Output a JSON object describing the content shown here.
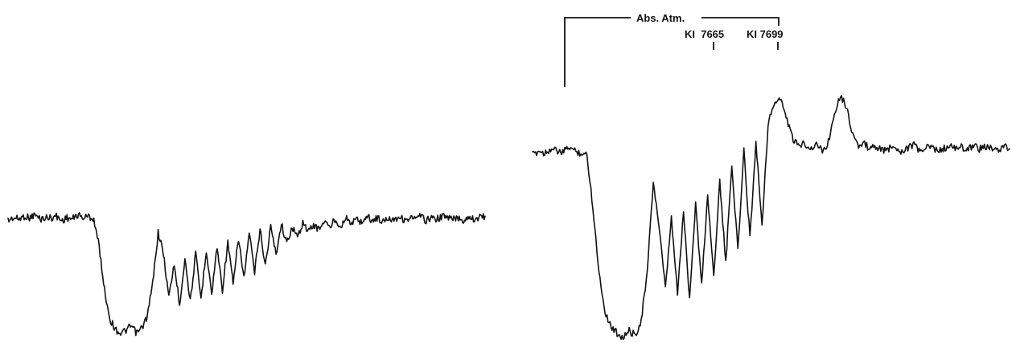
{
  "chart_data": [
    {
      "type": "line",
      "panel": "left",
      "title": "",
      "xlabel": "",
      "ylabel": "",
      "axes_visible": false,
      "grid": false,
      "legend": "none",
      "series": [
        {
          "values": [
            0.78,
            0.8,
            0.79,
            0.81,
            0.8,
            0.82,
            0.79,
            0.8,
            0.8,
            0.81,
            0.78,
            0.8,
            0.79,
            0.82,
            0.8,
            0.81,
            0.79,
            0.6,
            0.3,
            0.1,
            0.03,
            0.0,
            0.02,
            0.05,
            0.0,
            0.04,
            0.12,
            0.35,
            0.7,
            0.55,
            0.25,
            0.48,
            0.2,
            0.52,
            0.22,
            0.55,
            0.24,
            0.58,
            0.27,
            0.6,
            0.3,
            0.63,
            0.34,
            0.66,
            0.38,
            0.69,
            0.42,
            0.72,
            0.47,
            0.74,
            0.55,
            0.76,
            0.62,
            0.74,
            0.66,
            0.77,
            0.7,
            0.75,
            0.72,
            0.78,
            0.73,
            0.79,
            0.74,
            0.8,
            0.76,
            0.79,
            0.77,
            0.81,
            0.78,
            0.8,
            0.77,
            0.8,
            0.79,
            0.81,
            0.78,
            0.8,
            0.79,
            0.81,
            0.78,
            0.8,
            0.79,
            0.81,
            0.8,
            0.79,
            0.8,
            0.78,
            0.81,
            0.79,
            0.8,
            0.81
          ]
        }
      ]
    },
    {
      "type": "line",
      "panel": "right",
      "title": "",
      "xlabel": "",
      "ylabel": "",
      "axes_visible": false,
      "grid": false,
      "legend": "none",
      "annotations": {
        "bracket_label": "Abs. Atm.",
        "line_labels": [
          "KI  7665",
          "KI 7699"
        ]
      },
      "series": [
        {
          "values": [
            0.84,
            0.86,
            0.85,
            0.87,
            0.86,
            0.85,
            0.88,
            0.86,
            0.85,
            0.84,
            0.6,
            0.3,
            0.12,
            0.05,
            0.02,
            0.0,
            0.03,
            0.01,
            0.08,
            0.3,
            0.72,
            0.5,
            0.22,
            0.55,
            0.2,
            0.58,
            0.18,
            0.62,
            0.24,
            0.66,
            0.28,
            0.72,
            0.34,
            0.8,
            0.4,
            0.86,
            0.46,
            0.9,
            0.52,
            0.98,
            1.08,
            1.1,
            1.02,
            0.92,
            0.88,
            0.9,
            0.87,
            0.89,
            0.86,
            0.9,
            1.04,
            1.12,
            1.06,
            0.94,
            0.88,
            0.89,
            0.87,
            0.88,
            0.86,
            0.87,
            0.88,
            0.86,
            0.87,
            0.89,
            0.86,
            0.87,
            0.88,
            0.86,
            0.87,
            0.88,
            0.87,
            0.88,
            0.86,
            0.89,
            0.87,
            0.88,
            0.87,
            0.86,
            0.88,
            0.87
          ]
        }
      ]
    }
  ]
}
